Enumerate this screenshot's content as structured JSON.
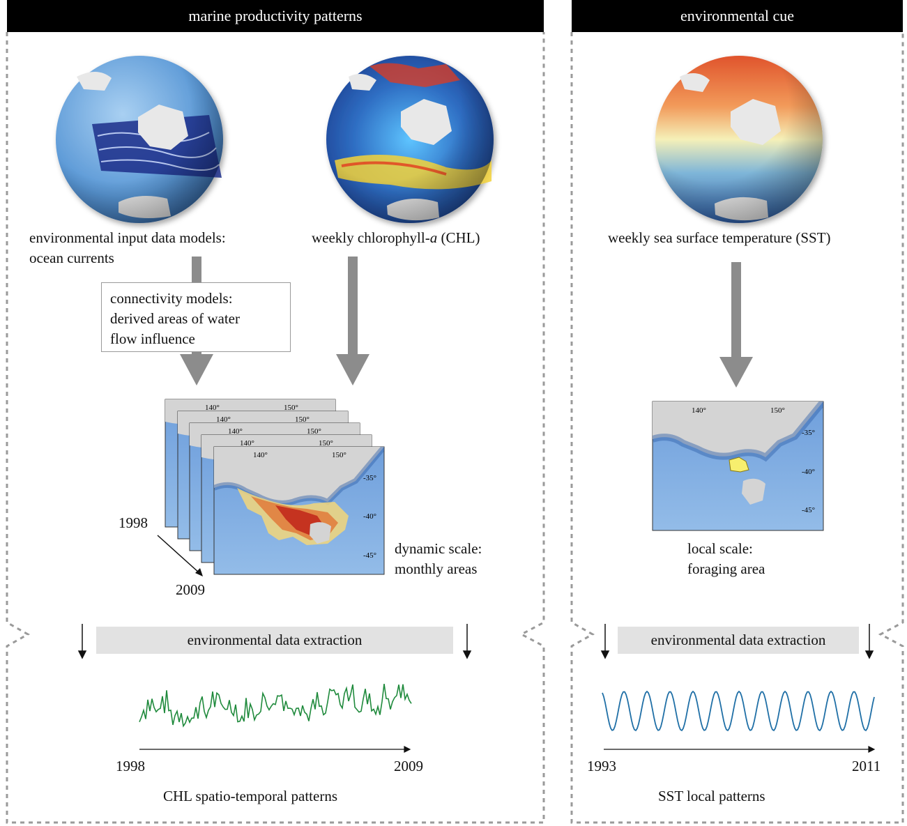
{
  "panels": {
    "left": {
      "header": "marine productivity  patterns",
      "ocean_label_line1": "environmental input data models:",
      "ocean_label_line2": "ocean currents",
      "chl_label_prefix": "weekly  chlorophyll-",
      "chl_label_italic": "a",
      "chl_label_suffix": " (CHL)",
      "connectivity_line1": "connectivity models:",
      "connectivity_line2": "derived areas of water",
      "connectivity_line3": "flow influence",
      "map_lon_labels": [
        "140°",
        "150°"
      ],
      "map_lat_labels": [
        "-35°",
        "-40°",
        "-45°"
      ],
      "year_start": "1998",
      "year_end": "2009",
      "dynamic_line1": "dynamic scale:",
      "dynamic_line2": "monthly areas",
      "extraction": "environmental data extraction",
      "series_start": "1998",
      "series_end": "2009",
      "series_caption": "CHL spatio-temporal patterns",
      "series_color": "#1f8a3c"
    },
    "right": {
      "header": "environmental cue",
      "sst_label": "weekly sea surface temperature (SST)",
      "map_lon_labels": [
        "140°",
        "150°"
      ],
      "map_lat_labels": [
        "-35°",
        "-40°",
        "-45°"
      ],
      "local_line1": "local scale:",
      "local_line2": "foraging area",
      "extraction": "environmental data extraction",
      "series_start": "1993",
      "series_end": "2011",
      "series_caption": "SST local patterns",
      "series_color": "#1f6fa6"
    }
  },
  "colors": {
    "header_bg": "#000000",
    "arrow_grey": "#8c8c8c",
    "extraction_bg": "#e2e2e2",
    "ocean_blue": "#4f8fd4",
    "land_grey": "#d4d4d4"
  }
}
